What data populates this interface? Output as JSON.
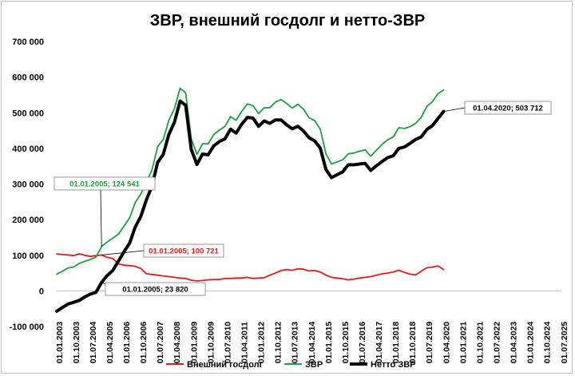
{
  "chart_data": {
    "type": "line",
    "title": "ЗВР, внешний госдолг и нетто-ЗВР",
    "ylim": [
      -100000,
      700000
    ],
    "yticks": [
      -100000,
      0,
      100000,
      200000,
      300000,
      400000,
      500000,
      600000,
      700000
    ],
    "ytick_labels": [
      "-100 000",
      "0",
      "100 000",
      "200 000",
      "300 000",
      "400 000",
      "500 000",
      "600 000",
      "700 000"
    ],
    "x_start": "2003-01",
    "x_end": "2025-07",
    "xtick_labels": [
      "01.01.2003",
      "01.10.2003",
      "01.07.2004",
      "01.04.2005",
      "01.01.2006",
      "01.10.2006",
      "01.07.2007",
      "01.04.2008",
      "01.01.2009",
      "01.10.2009",
      "01.07.2010",
      "01.04.2011",
      "01.01.2012",
      "01.10.2012",
      "01.07.2013",
      "01.04.2014",
      "01.01.2015",
      "01.10.2015",
      "01.07.2016",
      "01.04.2017",
      "01.01.2018",
      "01.10.2018",
      "01.07.2019",
      "01.04.2020",
      "01.01.2021",
      "01.10.2021",
      "01.07.2022",
      "01.04.2023",
      "01.01.2024",
      "01.10.2024",
      "01.07.2025"
    ],
    "grid": false,
    "legend_position": "bottom",
    "series": [
      {
        "name": "Внешний госдолг",
        "color": "#e41a1a",
        "width": 1.8,
        "points": [
          [
            "2003-01",
            104000
          ],
          [
            "2003-04",
            102000
          ],
          [
            "2003-07",
            101000
          ],
          [
            "2003-10",
            99000
          ],
          [
            "2004-01",
            104000
          ],
          [
            "2004-04",
            100000
          ],
          [
            "2004-07",
            97000
          ],
          [
            "2004-10",
            99000
          ],
          [
            "2005-01",
            100721
          ],
          [
            "2005-04",
            94000
          ],
          [
            "2005-07",
            91000
          ],
          [
            "2005-10",
            76000
          ],
          [
            "2006-01",
            72000
          ],
          [
            "2006-04",
            71000
          ],
          [
            "2006-07",
            69000
          ],
          [
            "2006-10",
            63000
          ],
          [
            "2007-01",
            48000
          ],
          [
            "2007-04",
            46000
          ],
          [
            "2007-07",
            44000
          ],
          [
            "2007-10",
            42000
          ],
          [
            "2008-01",
            40000
          ],
          [
            "2008-04",
            38000
          ],
          [
            "2008-07",
            36000
          ],
          [
            "2008-10",
            35000
          ],
          [
            "2009-01",
            30000
          ],
          [
            "2009-04",
            28000
          ],
          [
            "2009-07",
            29000
          ],
          [
            "2009-10",
            31000
          ],
          [
            "2010-01",
            32000
          ],
          [
            "2010-04",
            32000
          ],
          [
            "2010-07",
            35000
          ],
          [
            "2010-10",
            35000
          ],
          [
            "2011-01",
            36000
          ],
          [
            "2011-04",
            36000
          ],
          [
            "2011-07",
            38000
          ],
          [
            "2011-10",
            35000
          ],
          [
            "2012-01",
            36000
          ],
          [
            "2012-04",
            37000
          ],
          [
            "2012-07",
            44000
          ],
          [
            "2012-10",
            50000
          ],
          [
            "2013-01",
            57000
          ],
          [
            "2013-04",
            60000
          ],
          [
            "2013-07",
            58000
          ],
          [
            "2013-10",
            62000
          ],
          [
            "2014-01",
            61000
          ],
          [
            "2014-04",
            56000
          ],
          [
            "2014-07",
            57000
          ],
          [
            "2014-10",
            53000
          ],
          [
            "2015-01",
            44000
          ],
          [
            "2015-04",
            38000
          ],
          [
            "2015-07",
            36000
          ],
          [
            "2015-10",
            34000
          ],
          [
            "2016-01",
            31000
          ],
          [
            "2016-04",
            33000
          ],
          [
            "2016-07",
            36000
          ],
          [
            "2016-10",
            38000
          ],
          [
            "2017-01",
            40000
          ],
          [
            "2017-04",
            44000
          ],
          [
            "2017-07",
            48000
          ],
          [
            "2017-10",
            50000
          ],
          [
            "2018-01",
            53000
          ],
          [
            "2018-04",
            58000
          ],
          [
            "2018-07",
            52000
          ],
          [
            "2018-10",
            47000
          ],
          [
            "2019-01",
            45000
          ],
          [
            "2019-04",
            55000
          ],
          [
            "2019-07",
            65000
          ],
          [
            "2019-10",
            67000
          ],
          [
            "2020-01",
            70000
          ],
          [
            "2020-04",
            60000
          ]
        ]
      },
      {
        "name": "ЗВР",
        "color": "#1e9e3e",
        "width": 1.8,
        "points": [
          [
            "2003-01",
            47000
          ],
          [
            "2003-04",
            55000
          ],
          [
            "2003-07",
            64000
          ],
          [
            "2003-10",
            67000
          ],
          [
            "2004-01",
            77000
          ],
          [
            "2004-04",
            83000
          ],
          [
            "2004-07",
            88000
          ],
          [
            "2004-10",
            95000
          ],
          [
            "2005-01",
            124541
          ],
          [
            "2005-04",
            137000
          ],
          [
            "2005-07",
            148000
          ],
          [
            "2005-10",
            159000
          ],
          [
            "2006-01",
            182000
          ],
          [
            "2006-04",
            205000
          ],
          [
            "2006-07",
            248000
          ],
          [
            "2006-10",
            272000
          ],
          [
            "2007-01",
            304000
          ],
          [
            "2007-04",
            341000
          ],
          [
            "2007-07",
            405000
          ],
          [
            "2007-10",
            425000
          ],
          [
            "2008-01",
            479000
          ],
          [
            "2008-04",
            512000
          ],
          [
            "2008-07",
            569000
          ],
          [
            "2008-10",
            556000
          ],
          [
            "2009-01",
            427000
          ],
          [
            "2009-04",
            383000
          ],
          [
            "2009-07",
            413000
          ],
          [
            "2009-10",
            413000
          ],
          [
            "2010-01",
            439000
          ],
          [
            "2010-04",
            451000
          ],
          [
            "2010-07",
            462000
          ],
          [
            "2010-10",
            489000
          ],
          [
            "2011-01",
            479000
          ],
          [
            "2011-04",
            504000
          ],
          [
            "2011-07",
            525000
          ],
          [
            "2011-10",
            520000
          ],
          [
            "2012-01",
            498000
          ],
          [
            "2012-04",
            514000
          ],
          [
            "2012-07",
            514000
          ],
          [
            "2012-10",
            530000
          ],
          [
            "2013-01",
            537000
          ],
          [
            "2013-04",
            526000
          ],
          [
            "2013-07",
            513000
          ],
          [
            "2013-10",
            524000
          ],
          [
            "2014-01",
            510000
          ],
          [
            "2014-04",
            486000
          ],
          [
            "2014-07",
            478000
          ],
          [
            "2014-10",
            454000
          ],
          [
            "2015-01",
            385000
          ],
          [
            "2015-04",
            356000
          ],
          [
            "2015-07",
            362000
          ],
          [
            "2015-10",
            368000
          ],
          [
            "2016-01",
            385000
          ],
          [
            "2016-04",
            387000
          ],
          [
            "2016-07",
            392000
          ],
          [
            "2016-10",
            396000
          ],
          [
            "2017-01",
            378000
          ],
          [
            "2017-04",
            395000
          ],
          [
            "2017-07",
            411000
          ],
          [
            "2017-10",
            424000
          ],
          [
            "2018-01",
            432000
          ],
          [
            "2018-04",
            458000
          ],
          [
            "2018-07",
            456000
          ],
          [
            "2018-10",
            461000
          ],
          [
            "2019-01",
            470000
          ],
          [
            "2019-04",
            487000
          ],
          [
            "2019-07",
            518000
          ],
          [
            "2019-10",
            531000
          ],
          [
            "2020-01",
            554000
          ],
          [
            "2020-04",
            564000
          ]
        ]
      },
      {
        "name": "Нетто ЗВР",
        "color": "#000000",
        "width": 4,
        "points": [
          [
            "2003-01",
            -57000
          ],
          [
            "2003-04",
            -47000
          ],
          [
            "2003-07",
            -37000
          ],
          [
            "2003-10",
            -32000
          ],
          [
            "2004-01",
            -27000
          ],
          [
            "2004-04",
            -17000
          ],
          [
            "2004-07",
            -9000
          ],
          [
            "2004-10",
            -4000
          ],
          [
            "2005-01",
            23820
          ],
          [
            "2005-04",
            43000
          ],
          [
            "2005-07",
            57000
          ],
          [
            "2005-10",
            83000
          ],
          [
            "2006-01",
            110000
          ],
          [
            "2006-04",
            134000
          ],
          [
            "2006-07",
            179000
          ],
          [
            "2006-10",
            209000
          ],
          [
            "2007-01",
            256000
          ],
          [
            "2007-04",
            295000
          ],
          [
            "2007-07",
            361000
          ],
          [
            "2007-10",
            383000
          ],
          [
            "2008-01",
            439000
          ],
          [
            "2008-04",
            474000
          ],
          [
            "2008-07",
            533000
          ],
          [
            "2008-10",
            521000
          ],
          [
            "2009-01",
            397000
          ],
          [
            "2009-04",
            355000
          ],
          [
            "2009-07",
            384000
          ],
          [
            "2009-10",
            382000
          ],
          [
            "2010-01",
            407000
          ],
          [
            "2010-04",
            419000
          ],
          [
            "2010-07",
            427000
          ],
          [
            "2010-10",
            454000
          ],
          [
            "2011-01",
            443000
          ],
          [
            "2011-04",
            468000
          ],
          [
            "2011-07",
            487000
          ],
          [
            "2011-10",
            485000
          ],
          [
            "2012-01",
            462000
          ],
          [
            "2012-04",
            477000
          ],
          [
            "2012-07",
            470000
          ],
          [
            "2012-10",
            480000
          ],
          [
            "2013-01",
            480000
          ],
          [
            "2013-04",
            466000
          ],
          [
            "2013-07",
            455000
          ],
          [
            "2013-10",
            462000
          ],
          [
            "2014-01",
            449000
          ],
          [
            "2014-04",
            430000
          ],
          [
            "2014-07",
            421000
          ],
          [
            "2014-10",
            401000
          ],
          [
            "2015-01",
            341000
          ],
          [
            "2015-04",
            318000
          ],
          [
            "2015-07",
            326000
          ],
          [
            "2015-10",
            334000
          ],
          [
            "2016-01",
            354000
          ],
          [
            "2016-04",
            354000
          ],
          [
            "2016-07",
            356000
          ],
          [
            "2016-10",
            358000
          ],
          [
            "2017-01",
            338000
          ],
          [
            "2017-04",
            351000
          ],
          [
            "2017-07",
            363000
          ],
          [
            "2017-10",
            374000
          ],
          [
            "2018-01",
            379000
          ],
          [
            "2018-04",
            400000
          ],
          [
            "2018-07",
            404000
          ],
          [
            "2018-10",
            414000
          ],
          [
            "2019-01",
            425000
          ],
          [
            "2019-04",
            432000
          ],
          [
            "2019-07",
            453000
          ],
          [
            "2019-10",
            464000
          ],
          [
            "2020-01",
            484000
          ],
          [
            "2020-04",
            503712
          ]
        ]
      }
    ],
    "annotations": [
      {
        "text": "01.01.2005;  124 541",
        "color": "#1e9e3e",
        "series": "ЗВР",
        "date": "2005-01",
        "value": 124541,
        "placement": "upper-left"
      },
      {
        "text": "01.01.2005; 100 721",
        "color": "#e41a1a",
        "series": "Внешний госдолг",
        "date": "2005-01",
        "value": 100721,
        "placement": "right"
      },
      {
        "text": "01.01.2005;  23 820",
        "color": "#000000",
        "series": "Нетто ЗВР",
        "date": "2005-01",
        "value": 23820,
        "placement": "lower-right"
      },
      {
        "text": "01.04.2020;  503 712",
        "color": "#000000",
        "series": "Нетто ЗВР",
        "date": "2020-04",
        "value": 503712,
        "placement": "right"
      }
    ]
  }
}
